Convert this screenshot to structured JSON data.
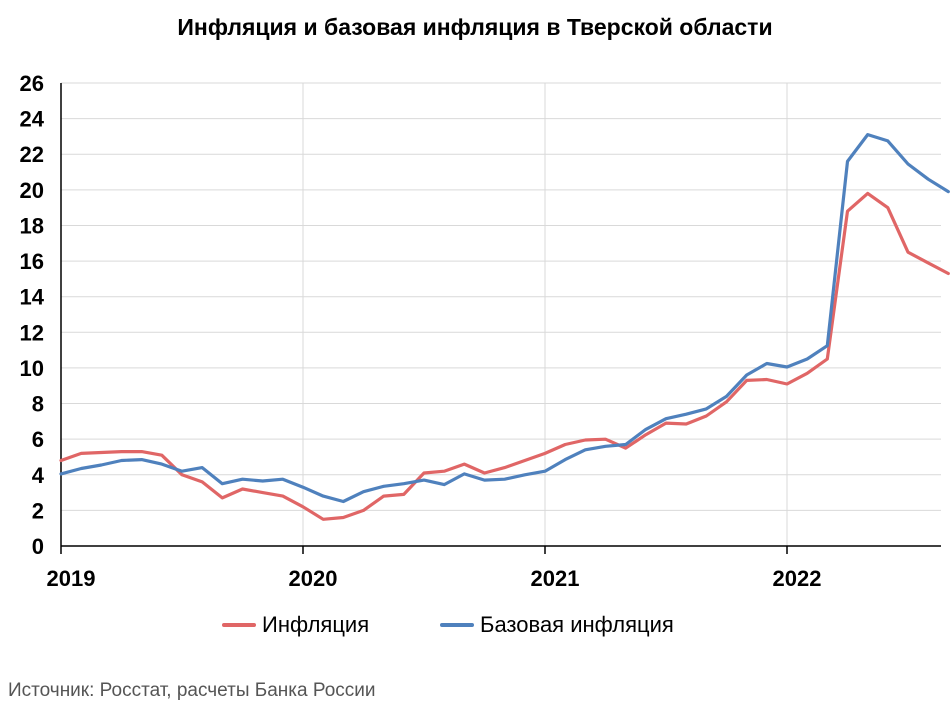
{
  "chart_data": {
    "type": "line",
    "title": "Инфляция и базовая инфляция в Тверской области",
    "source": "Источник: Росстат, расчеты Банка России",
    "ylim": [
      0,
      26
    ],
    "yticks": [
      0,
      2,
      4,
      6,
      8,
      10,
      12,
      14,
      16,
      18,
      20,
      22,
      24,
      26
    ],
    "x_start": "2019-01",
    "xtick_labels": [
      "2019",
      "2020",
      "2021",
      "2022"
    ],
    "grid": true,
    "legend_position": "bottom",
    "series": [
      {
        "name": "Инфляция",
        "color": "#e06666",
        "values": [
          4.8,
          5.2,
          5.25,
          5.3,
          5.3,
          5.1,
          4.0,
          3.6,
          2.7,
          3.2,
          3.0,
          2.8,
          2.2,
          1.5,
          1.6,
          2.0,
          2.8,
          2.9,
          4.1,
          4.2,
          4.6,
          4.1,
          4.4,
          4.8,
          5.2,
          5.7,
          5.95,
          6.0,
          5.5,
          6.25,
          6.9,
          6.85,
          7.3,
          8.1,
          9.3,
          9.35,
          9.1,
          9.7,
          10.5,
          18.8,
          19.8,
          19.0,
          16.5,
          15.9,
          15.3
        ]
      },
      {
        "name": "Базовая инфляция",
        "color": "#4f81bd",
        "values": [
          4.05,
          4.35,
          4.55,
          4.8,
          4.85,
          4.6,
          4.2,
          4.4,
          3.5,
          3.75,
          3.65,
          3.75,
          3.3,
          2.8,
          2.5,
          3.05,
          3.35,
          3.5,
          3.7,
          3.45,
          4.05,
          3.7,
          3.75,
          4.0,
          4.2,
          4.85,
          5.4,
          5.6,
          5.7,
          6.55,
          7.15,
          7.4,
          7.7,
          8.4,
          9.6,
          10.25,
          10.05,
          10.5,
          11.25,
          21.6,
          23.1,
          22.75,
          21.45,
          20.6,
          19.9
        ]
      }
    ]
  }
}
